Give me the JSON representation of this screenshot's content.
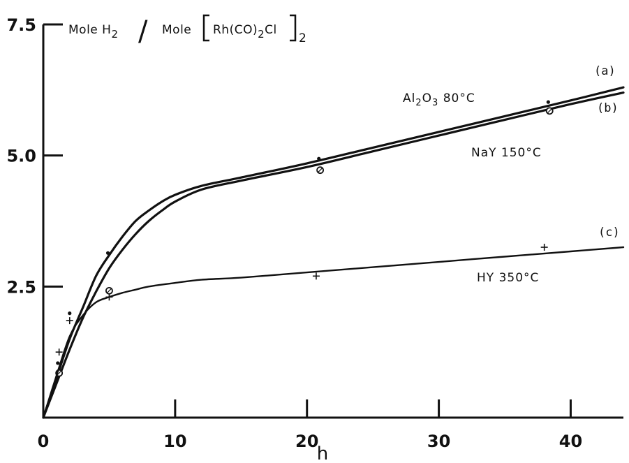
{
  "chart_data": {
    "type": "line",
    "title": "",
    "xlabel": "h",
    "ylabel": {
      "prefix": "Mole H",
      "prefix_sub": "2",
      "slash": "/",
      "mid": "Mole",
      "formula": "Rh(CO)",
      "formula_sub": "2",
      "formula_end": "Cl",
      "outer_sub": "2"
    },
    "xlim": [
      0,
      44
    ],
    "ylim": [
      0,
      7.5
    ],
    "x_ticks": [
      0,
      10,
      20,
      30,
      40
    ],
    "x_tick_labels": [
      "0",
      "10",
      "20",
      "30",
      "40"
    ],
    "y_ticks": [
      2.5,
      5.0,
      7.5
    ],
    "y_tick_labels": [
      "2.5",
      "5.0",
      "7.5"
    ],
    "grid": false,
    "legend": "none",
    "series": [
      {
        "tag": "(a)",
        "label": "Al2O3  80°C",
        "label_parts": [
          "Al",
          "2",
          "O",
          "3",
          "  80°C"
        ],
        "marker": "dot",
        "curve": [
          [
            0,
            0
          ],
          [
            1,
            0.75
          ],
          [
            2,
            1.5
          ],
          [
            3,
            2.1
          ],
          [
            4,
            2.7
          ],
          [
            5,
            3.1
          ],
          [
            6,
            3.45
          ],
          [
            7,
            3.75
          ],
          [
            8,
            3.95
          ],
          [
            9,
            4.12
          ],
          [
            10,
            4.25
          ],
          [
            12,
            4.42
          ],
          [
            15,
            4.58
          ],
          [
            20,
            4.85
          ],
          [
            25,
            5.15
          ],
          [
            30,
            5.45
          ],
          [
            35,
            5.75
          ],
          [
            40,
            6.05
          ],
          [
            44,
            6.3
          ]
        ],
        "points": [
          [
            1.1,
            1.0
          ],
          [
            2.0,
            1.95
          ],
          [
            4.9,
            3.1
          ],
          [
            20.9,
            4.9
          ],
          [
            38.3,
            5.98
          ]
        ]
      },
      {
        "tag": "(b)",
        "label": "NaY  150°C",
        "label_parts": [
          "NaY  150°C"
        ],
        "marker": "circle",
        "curve": [
          [
            0,
            0
          ],
          [
            1,
            0.65
          ],
          [
            2,
            1.3
          ],
          [
            3,
            1.9
          ],
          [
            4,
            2.4
          ],
          [
            5,
            2.85
          ],
          [
            6,
            3.2
          ],
          [
            7,
            3.5
          ],
          [
            8,
            3.75
          ],
          [
            9,
            3.95
          ],
          [
            10,
            4.12
          ],
          [
            12,
            4.35
          ],
          [
            15,
            4.52
          ],
          [
            20,
            4.78
          ],
          [
            25,
            5.08
          ],
          [
            30,
            5.38
          ],
          [
            35,
            5.68
          ],
          [
            40,
            5.98
          ],
          [
            44,
            6.2
          ]
        ],
        "points": [
          [
            1.2,
            0.85
          ],
          [
            5.0,
            2.42
          ],
          [
            21.0,
            4.72
          ],
          [
            38.4,
            5.85
          ]
        ]
      },
      {
        "tag": "(c)",
        "label": "HY  350°C",
        "label_parts": [
          "HY  350°C"
        ],
        "marker": "plus",
        "curve": [
          [
            0,
            0
          ],
          [
            1,
            0.8
          ],
          [
            2,
            1.55
          ],
          [
            3,
            1.95
          ],
          [
            4,
            2.2
          ],
          [
            5,
            2.3
          ],
          [
            6,
            2.38
          ],
          [
            7,
            2.44
          ],
          [
            8,
            2.5
          ],
          [
            10,
            2.57
          ],
          [
            12,
            2.63
          ],
          [
            15,
            2.67
          ],
          [
            20,
            2.77
          ],
          [
            25,
            2.87
          ],
          [
            30,
            2.97
          ],
          [
            35,
            3.07
          ],
          [
            40,
            3.17
          ],
          [
            44,
            3.25
          ]
        ],
        "points": [
          [
            1.2,
            1.25
          ],
          [
            2.0,
            1.85
          ],
          [
            5.0,
            2.3
          ],
          [
            20.7,
            2.7
          ],
          [
            38.0,
            3.25
          ]
        ]
      }
    ]
  }
}
